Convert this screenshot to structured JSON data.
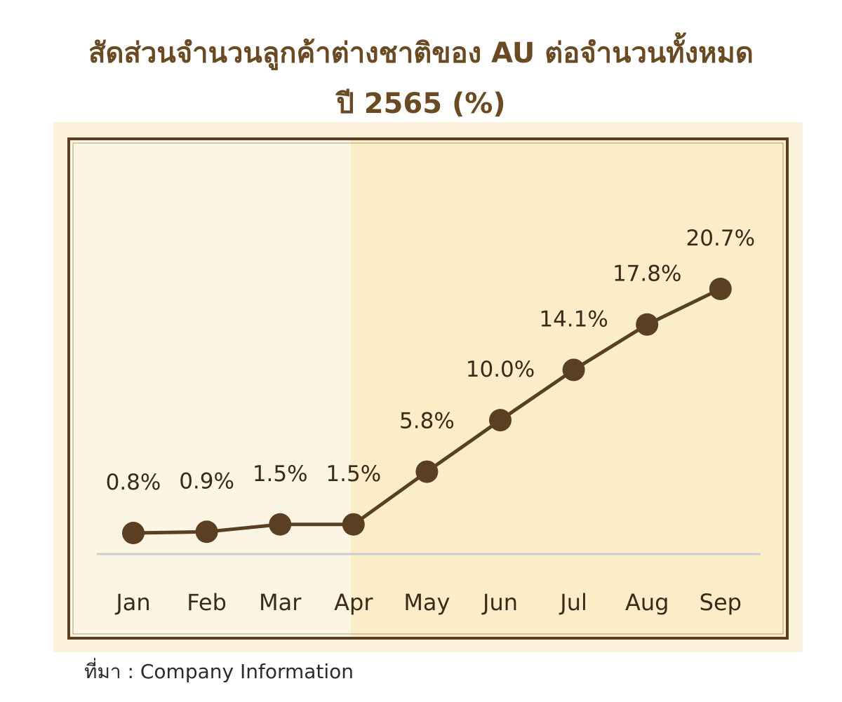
{
  "chart_data": {
    "type": "line",
    "title": "สัดส่วนจำนวนลูกค้าต่างชาติของ AU ต่อจำนวนทั้งหมด",
    "subtitle": "ปี 2565 (%)",
    "categories": [
      "Jan",
      "Feb",
      "Mar",
      "Apr",
      "May",
      "Jun",
      "Jul",
      "Aug",
      "Sep"
    ],
    "series": [
      {
        "values": [
          0.8,
          0.9,
          1.5,
          1.5,
          5.8,
          10.0,
          14.1,
          17.8,
          20.7
        ],
        "labels": [
          "0.8%",
          "0.9%",
          "1.5%",
          "1.5%",
          "5.8%",
          "10.0%",
          "14.1%",
          "17.8%",
          "20.7%"
        ]
      }
    ],
    "ylim": [
      0,
      20.7
    ],
    "grid": false,
    "legend": "none"
  },
  "source_text": "ที่มา : Company Information",
  "colors": {
    "title": "#6a4a22",
    "line": "#5a3f22",
    "marker": "#5a3f22",
    "frame": "#5a4020",
    "panel_left": "#fdf5e3",
    "panel_right": "#fbedc8",
    "outer_bg": "#fcf2dc",
    "baseline": "#c9cdd2",
    "text": "#3a2a1a"
  }
}
